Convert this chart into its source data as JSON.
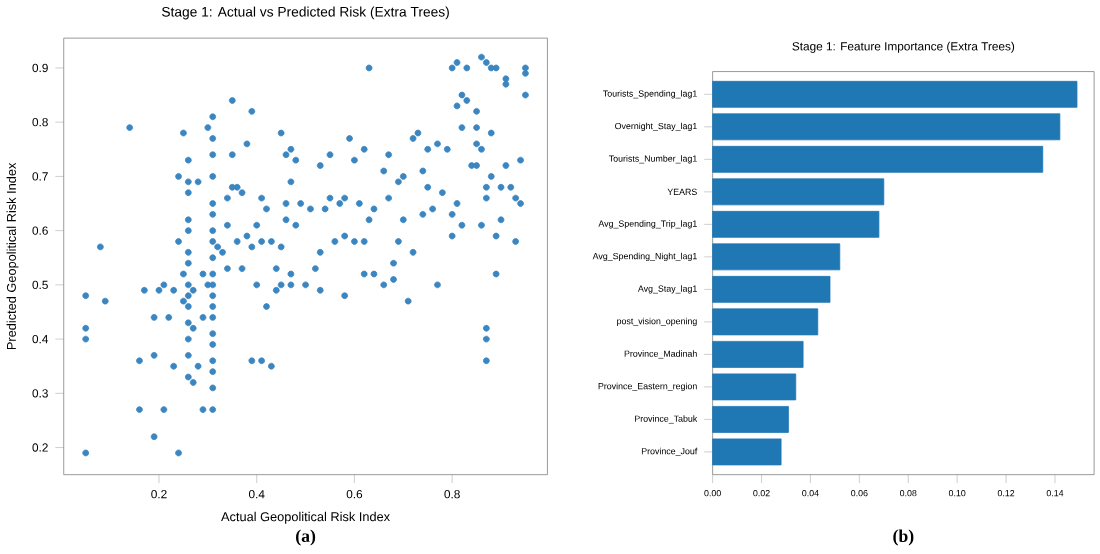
{
  "chart_data": [
    {
      "type": "scatter",
      "title": "Stage 1: Actual vs Predicted Risk (Extra Trees)",
      "xlabel": "Actual Geopolitical Risk Index",
      "ylabel": "Predicted Geopolitical Risk Index",
      "color": "#3b86c0",
      "marker": "circle",
      "xlim": [
        0.005,
        0.995
      ],
      "ylim": [
        0.15,
        0.955
      ],
      "xticks": [
        0.2,
        0.4,
        0.6,
        0.8
      ],
      "yticks": [
        0.2,
        0.3,
        0.4,
        0.5,
        0.6,
        0.7,
        0.8,
        0.9
      ],
      "annotations": [
        "(a)"
      ],
      "x": [
        0.05,
        0.05,
        0.05,
        0.05,
        0.08,
        0.09,
        0.14,
        0.16,
        0.16,
        0.17,
        0.19,
        0.19,
        0.19,
        0.2,
        0.21,
        0.21,
        0.22,
        0.23,
        0.23,
        0.24,
        0.24,
        0.24,
        0.25,
        0.25,
        0.25,
        0.26,
        0.26,
        0.26,
        0.26,
        0.26,
        0.26,
        0.26,
        0.26,
        0.26,
        0.26,
        0.26,
        0.26,
        0.26,
        0.26,
        0.27,
        0.27,
        0.27,
        0.28,
        0.28,
        0.29,
        0.29,
        0.29,
        0.3,
        0.3,
        0.31,
        0.31,
        0.31,
        0.31,
        0.31,
        0.31,
        0.31,
        0.31,
        0.31,
        0.31,
        0.31,
        0.31,
        0.31,
        0.31,
        0.31,
        0.31,
        0.31,
        0.31,
        0.31,
        0.31,
        0.32,
        0.33,
        0.34,
        0.34,
        0.34,
        0.35,
        0.35,
        0.35,
        0.36,
        0.36,
        0.37,
        0.37,
        0.38,
        0.38,
        0.39,
        0.39,
        0.39,
        0.4,
        0.4,
        0.41,
        0.41,
        0.41,
        0.42,
        0.42,
        0.43,
        0.43,
        0.44,
        0.44,
        0.45,
        0.45,
        0.45,
        0.46,
        0.46,
        0.46,
        0.47,
        0.47,
        0.47,
        0.47,
        0.48,
        0.48,
        0.49,
        0.5,
        0.51,
        0.52,
        0.53,
        0.53,
        0.53,
        0.54,
        0.55,
        0.55,
        0.56,
        0.57,
        0.58,
        0.58,
        0.58,
        0.59,
        0.6,
        0.6,
        0.61,
        0.62,
        0.62,
        0.62,
        0.63,
        0.63,
        0.64,
        0.64,
        0.66,
        0.66,
        0.67,
        0.67,
        0.68,
        0.68,
        0.69,
        0.69,
        0.7,
        0.7,
        0.71,
        0.72,
        0.72,
        0.73,
        0.74,
        0.74,
        0.75,
        0.75,
        0.76,
        0.77,
        0.77,
        0.78,
        0.79,
        0.8,
        0.8,
        0.8,
        0.81,
        0.81,
        0.81,
        0.82,
        0.82,
        0.82,
        0.83,
        0.83,
        0.84,
        0.85,
        0.85,
        0.85,
        0.85,
        0.86,
        0.86,
        0.86,
        0.87,
        0.87,
        0.87,
        0.87,
        0.87,
        0.87,
        0.88,
        0.88,
        0.88,
        0.89,
        0.89,
        0.89,
        0.9,
        0.9,
        0.91,
        0.91,
        0.91,
        0.92,
        0.93,
        0.93,
        0.94,
        0.94,
        0.95,
        0.95,
        0.95
      ],
      "values": [
        0.48,
        0.42,
        0.4,
        0.19,
        0.57,
        0.47,
        0.79,
        0.36,
        0.27,
        0.49,
        0.22,
        0.37,
        0.44,
        0.49,
        0.5,
        0.27,
        0.44,
        0.35,
        0.49,
        0.19,
        0.58,
        0.7,
        0.52,
        0.47,
        0.78,
        0.33,
        0.37,
        0.4,
        0.43,
        0.46,
        0.48,
        0.5,
        0.54,
        0.56,
        0.6,
        0.62,
        0.67,
        0.69,
        0.73,
        0.32,
        0.42,
        0.49,
        0.35,
        0.69,
        0.44,
        0.27,
        0.52,
        0.5,
        0.79,
        0.31,
        0.34,
        0.36,
        0.39,
        0.41,
        0.44,
        0.46,
        0.48,
        0.5,
        0.52,
        0.55,
        0.58,
        0.6,
        0.63,
        0.65,
        0.7,
        0.74,
        0.77,
        0.81,
        0.27,
        0.57,
        0.56,
        0.53,
        0.61,
        0.66,
        0.84,
        0.74,
        0.68,
        0.58,
        0.68,
        0.67,
        0.53,
        0.59,
        0.76,
        0.82,
        0.36,
        0.57,
        0.5,
        0.61,
        0.58,
        0.36,
        0.66,
        0.46,
        0.64,
        0.35,
        0.58,
        0.49,
        0.53,
        0.78,
        0.57,
        0.5,
        0.62,
        0.74,
        0.65,
        0.75,
        0.69,
        0.52,
        0.5,
        0.73,
        0.61,
        0.65,
        0.5,
        0.64,
        0.53,
        0.72,
        0.49,
        0.56,
        0.64,
        0.74,
        0.66,
        0.58,
        0.65,
        0.48,
        0.59,
        0.66,
        0.77,
        0.73,
        0.58,
        0.65,
        0.52,
        0.58,
        0.75,
        0.62,
        0.9,
        0.64,
        0.52,
        0.5,
        0.71,
        0.74,
        0.66,
        0.54,
        0.51,
        0.69,
        0.58,
        0.7,
        0.62,
        0.47,
        0.77,
        0.56,
        0.78,
        0.71,
        0.63,
        0.75,
        0.68,
        0.64,
        0.76,
        0.5,
        0.67,
        0.75,
        0.9,
        0.63,
        0.59,
        0.83,
        0.91,
        0.65,
        0.85,
        0.79,
        0.61,
        0.84,
        0.9,
        0.72,
        0.82,
        0.76,
        0.72,
        0.79,
        0.92,
        0.61,
        0.75,
        0.68,
        0.66,
        0.42,
        0.4,
        0.36,
        0.91,
        0.78,
        0.9,
        0.7,
        0.59,
        0.52,
        0.9,
        0.68,
        0.62,
        0.88,
        0.87,
        0.72,
        0.68,
        0.58,
        0.66,
        0.73,
        0.65,
        0.9,
        0.85,
        0.89
      ]
    },
    {
      "type": "bar",
      "orientation": "horizontal",
      "title": "Stage 1: Feature Importance (Extra Trees)",
      "color": "#1f77b4",
      "xlim": [
        0,
        0.156
      ],
      "annotations": [
        "(b)"
      ],
      "xticks": [
        {
          "value": 0,
          "label": "0.00"
        },
        {
          "value": 0.02,
          "label": "0.02"
        },
        {
          "value": 0.04,
          "label": "0.04"
        },
        {
          "value": 0.06,
          "label": "0.06"
        },
        {
          "value": 0.08,
          "label": "0.08"
        },
        {
          "value": 0.1,
          "label": "0.10"
        },
        {
          "value": 0.12,
          "label": "0.12"
        },
        {
          "value": 0.14,
          "label": "0.14"
        }
      ],
      "categories": [
        "Tourists_Spending_lag1",
        "Overnight_Stay_lag1",
        "Tourists_Number_lag1",
        "YEARS",
        "Avg_Spending_Trip_lag1",
        "Avg_Spending_Night_lag1",
        "Avg_Stay_lag1",
        "post_vision_opening",
        "Province_Madinah",
        "Province_Eastern_region",
        "Province_Tabuk",
        "Province_Jouf"
      ],
      "values": [
        0.149,
        0.142,
        0.135,
        0.07,
        0.068,
        0.052,
        0.048,
        0.043,
        0.037,
        0.034,
        0.031,
        0.028
      ]
    }
  ]
}
